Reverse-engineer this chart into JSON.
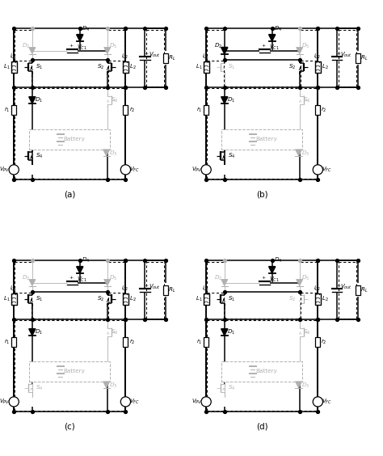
{
  "panels": [
    {
      "key": "a",
      "label": "(a)",
      "active": {
        "S1": 1,
        "S2": 1,
        "S3": 0,
        "S4": 1,
        "D1": 1,
        "D2": 0,
        "D3": 0,
        "D4": 1,
        "D5": 0
      },
      "dashed_paths": [
        "top_left_loop",
        "top_right_loop",
        "mid_h_loop",
        "bottom_loop",
        "output_loop"
      ]
    },
    {
      "key": "b",
      "label": "(b)",
      "active": {
        "S1": 0,
        "S2": 1,
        "S3": 0,
        "S4": 1,
        "D1": 1,
        "D2": 1,
        "D3": 0,
        "D4": 1,
        "D5": 0
      },
      "dashed_paths": [
        "top_left_loop",
        "top_right_loop",
        "mid_h_loop",
        "bottom_loop",
        "output_loop"
      ]
    },
    {
      "key": "c",
      "label": "(c)",
      "active": {
        "S1": 1,
        "S2": 1,
        "S3": 0,
        "S4": 0,
        "D1": 1,
        "D2": 0,
        "D3": 1,
        "D4": 1,
        "D5": 0
      },
      "dashed_paths": [
        "top_left_loop",
        "top_right_loop",
        "mid_h_loop",
        "bottom_loop",
        "output_loop"
      ]
    },
    {
      "key": "d",
      "label": "(d)",
      "active": {
        "S1": 1,
        "S2": 0,
        "S3": 0,
        "S4": 0,
        "D1": 1,
        "D2": 0,
        "D3": 1,
        "D4": 1,
        "D5": 0
      },
      "dashed_paths": [
        "top_left_loop",
        "top_right_loop",
        "mid_h_loop",
        "bottom_loop",
        "output_loop"
      ]
    }
  ],
  "AC": "#000000",
  "IC": "#b0b0b0",
  "bg": "#ffffff"
}
